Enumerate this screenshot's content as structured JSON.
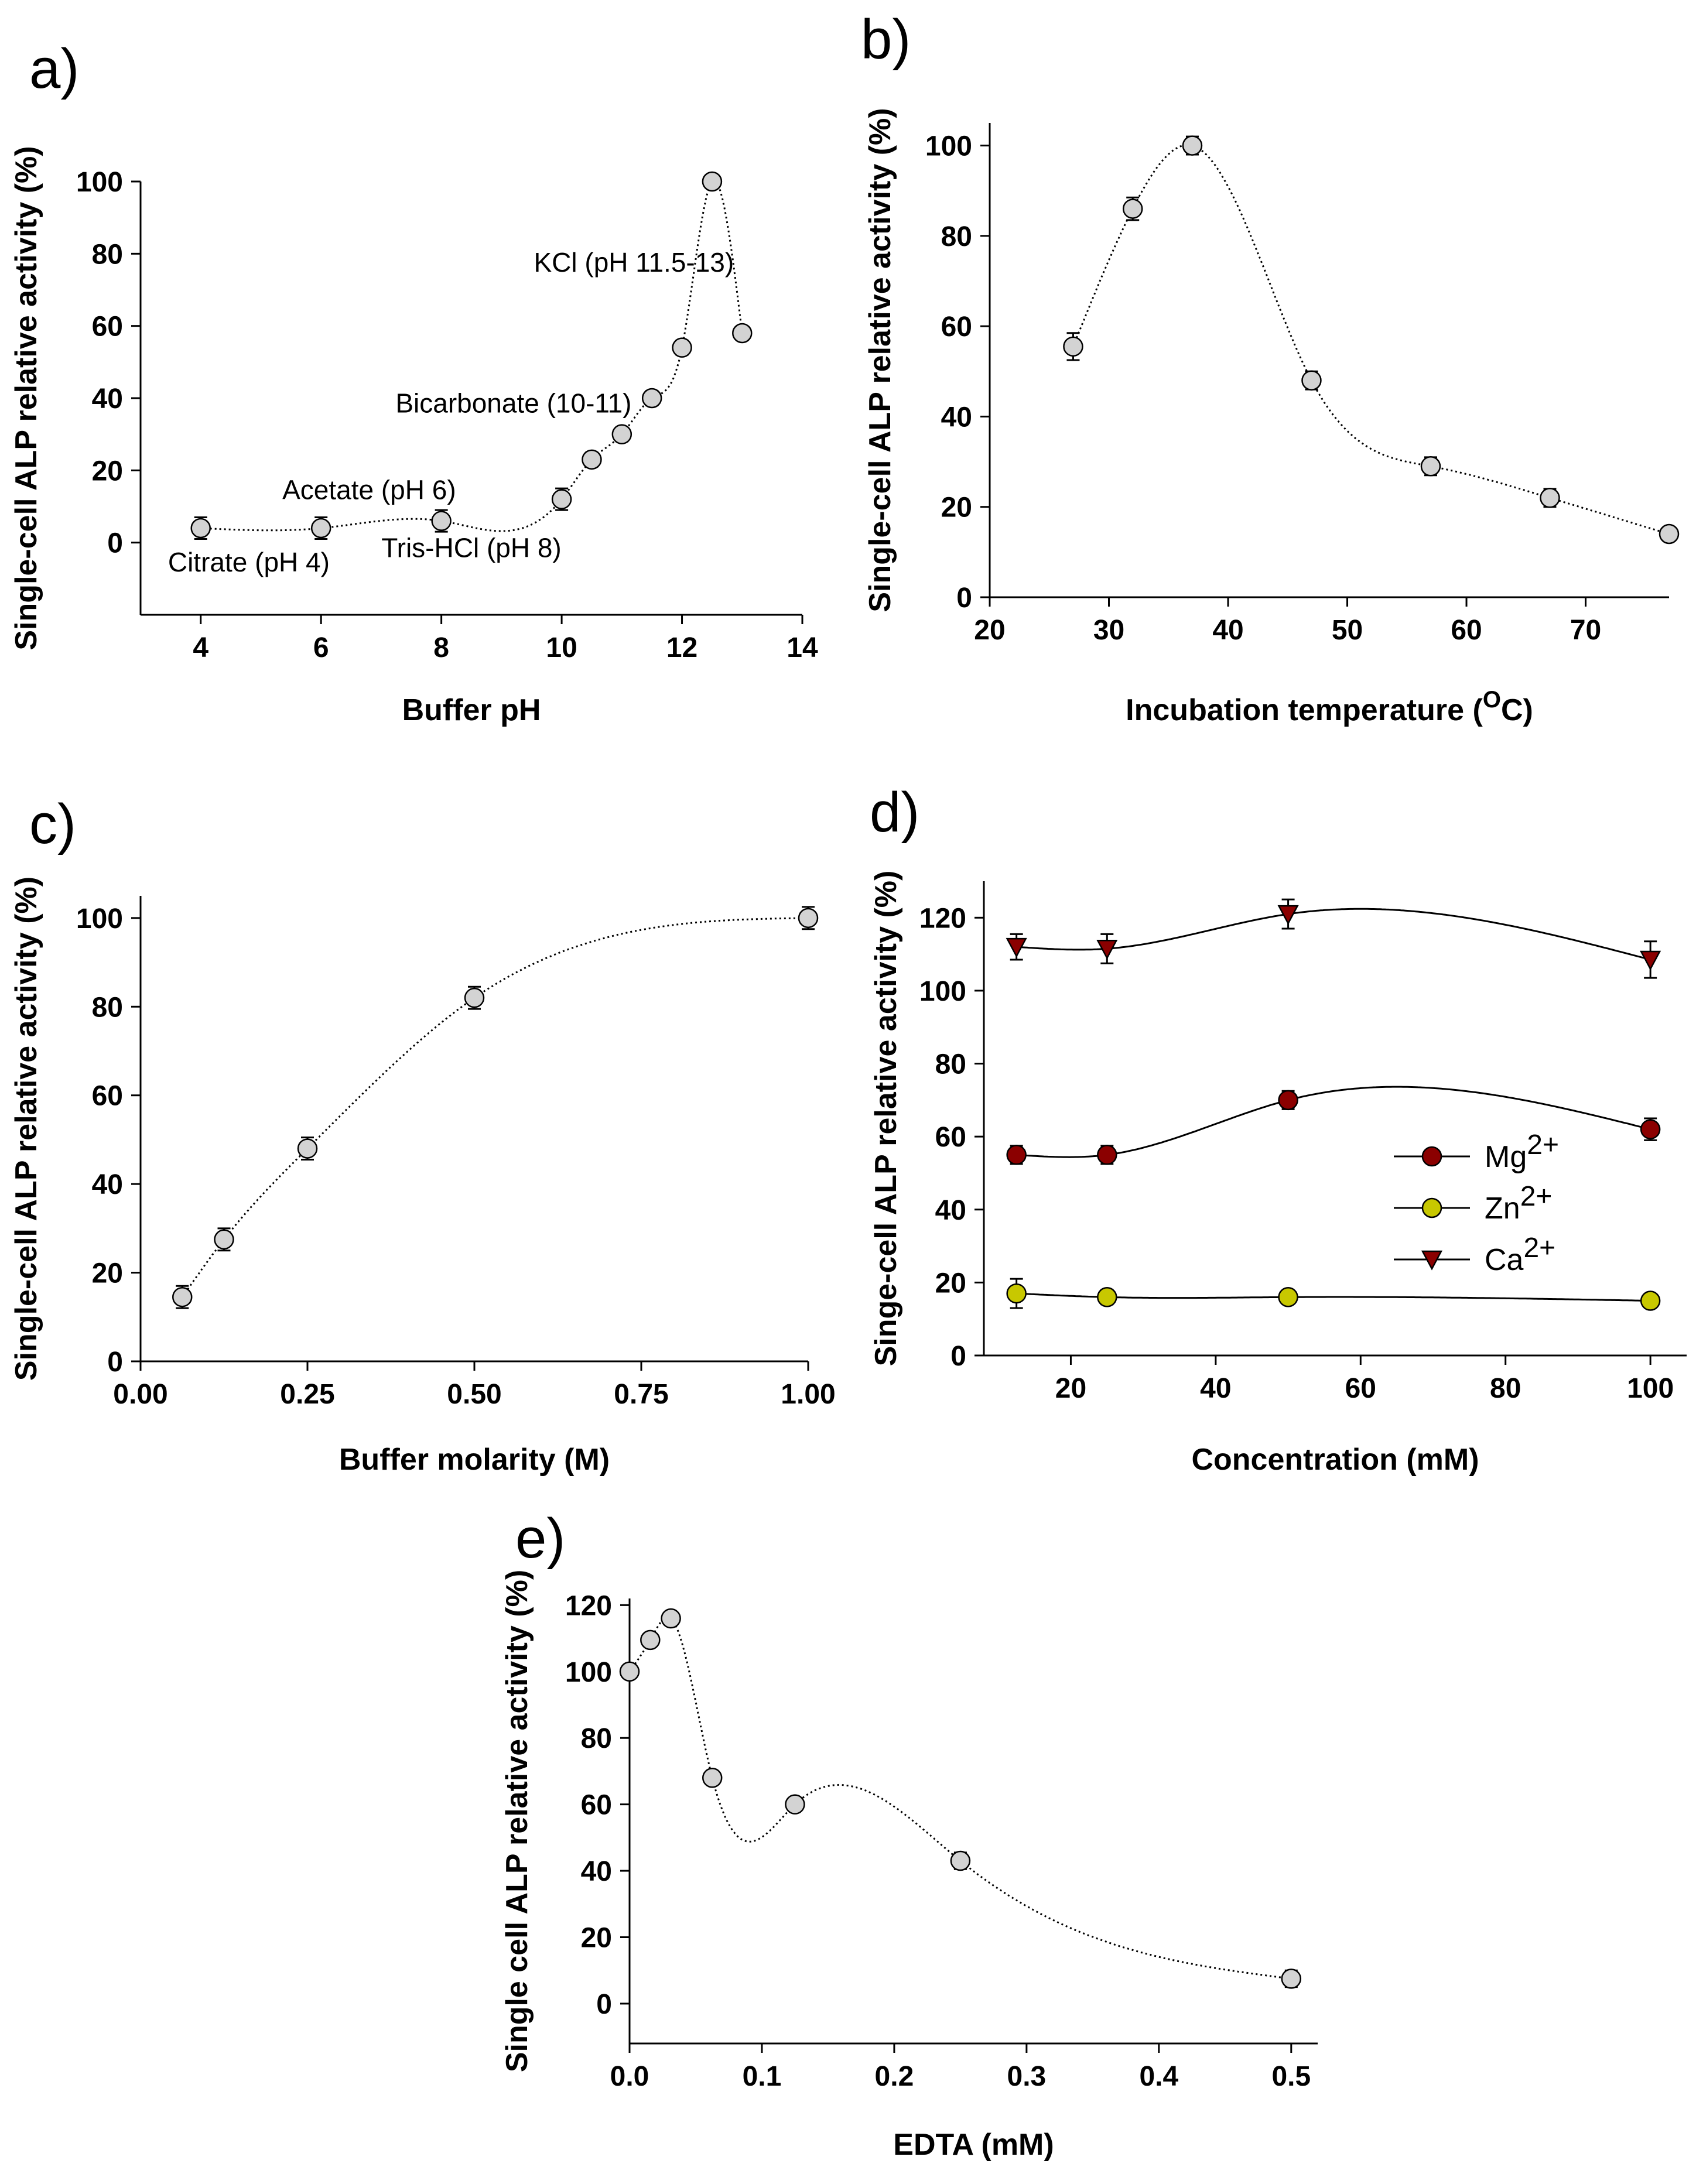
{
  "chart_data": [
    {
      "panel": "a)",
      "type": "scatter",
      "xlabel": "Buffer pH",
      "ylabel": "Single-cell ALP relative activity (%)",
      "xlim": [
        3,
        14
      ],
      "ylim": [
        -20,
        100
      ],
      "xticks": [
        4,
        6,
        8,
        10,
        12,
        14
      ],
      "yticks": [
        0,
        20,
        40,
        60,
        80,
        100
      ],
      "fit_line": "dotted",
      "series": [
        {
          "x": [
            4,
            6,
            8,
            10,
            10.5,
            11,
            11.5,
            12,
            12.5,
            13
          ],
          "y": [
            4,
            4,
            6,
            12,
            23,
            30,
            40,
            54,
            100,
            58
          ],
          "err": [
            3,
            3,
            3,
            3,
            2,
            2,
            2,
            2,
            1,
            1
          ]
        }
      ],
      "annotations": [
        {
          "text": "KCl (pH 11.5-13)",
          "x": 11.2,
          "y": 75
        },
        {
          "text": "Bicarbonate (10-11)",
          "x": 9.2,
          "y": 36
        },
        {
          "text": "Acetate (pH 6)",
          "x": 6.8,
          "y": 12
        },
        {
          "text": "Citrate (pH 4)",
          "x": 4.8,
          "y": -8
        },
        {
          "text": "Tris-HCl (pH 8)",
          "x": 8.5,
          "y": -4
        }
      ]
    },
    {
      "panel": "b)",
      "type": "scatter",
      "xlabel": "Incubation temperature (",
      "xlabel_sup": "O",
      "xlabel_end": "C)",
      "ylabel": "Single-cell ALP relative activity (%)",
      "xlim": [
        20,
        77
      ],
      "ylim": [
        0,
        105
      ],
      "xticks": [
        20,
        30,
        40,
        50,
        60,
        70
      ],
      "yticks": [
        0,
        20,
        40,
        60,
        80,
        100
      ],
      "fit_line": "dotted",
      "series": [
        {
          "x": [
            27,
            32,
            37,
            47,
            57,
            67,
            77
          ],
          "y": [
            55.5,
            86,
            100,
            48,
            29,
            22,
            14
          ],
          "err": [
            3,
            2.5,
            2,
            2,
            2,
            2,
            1.5
          ]
        }
      ]
    },
    {
      "panel": "c)",
      "type": "scatter",
      "xlabel": "Buffer molarity (M)",
      "ylabel": "Single-cell ALP relative activity (%)",
      "xlim": [
        0,
        1
      ],
      "ylim": [
        0,
        105
      ],
      "xticks": [
        "0.00",
        "0.25",
        "0.50",
        "0.75",
        "1.00"
      ],
      "yticks": [
        0,
        20,
        40,
        60,
        80,
        100
      ],
      "fit_line": "dotted",
      "series": [
        {
          "x": [
            0.0625,
            0.125,
            0.25,
            0.5,
            1.0
          ],
          "y": [
            14.5,
            27.5,
            48,
            82,
            100
          ],
          "err": [
            2.5,
            2.5,
            2.5,
            2.5,
            2.5
          ]
        }
      ]
    },
    {
      "panel": "d)",
      "type": "line",
      "xlabel": "Concentration (mM)",
      "ylabel": "Singe-cell ALP relative activity (%)",
      "xlim": [
        8,
        105
      ],
      "ylim": [
        0,
        130
      ],
      "xticks": [
        20,
        40,
        60,
        80,
        100
      ],
      "yticks": [
        0,
        20,
        40,
        60,
        80,
        100,
        120
      ],
      "legend_position": "center-right",
      "series": [
        {
          "name": "Mg",
          "sup": "2+",
          "marker": "circle",
          "color": "#8b0000",
          "x": [
            12.5,
            25,
            50,
            100
          ],
          "y": [
            55,
            55,
            70,
            62
          ],
          "err": [
            2.5,
            2.5,
            2.5,
            3
          ]
        },
        {
          "name": "Zn",
          "sup": "2+",
          "marker": "circle",
          "color": "#c8c800",
          "x": [
            12.5,
            25,
            50,
            100
          ],
          "y": [
            17,
            16,
            16,
            15
          ],
          "err": [
            4,
            2,
            1,
            1
          ]
        },
        {
          "name": "Ca",
          "sup": "2+",
          "marker": "triangle-down",
          "color": "#8b0000",
          "x": [
            12.5,
            25,
            50,
            100
          ],
          "y": [
            112,
            111.5,
            121,
            108.5
          ],
          "err": [
            3.5,
            4,
            4,
            5
          ]
        }
      ]
    },
    {
      "panel": "e)",
      "type": "scatter",
      "xlabel": "EDTA (mM)",
      "ylabel": "Single cell ALP relative activity (%)",
      "xlim": [
        0,
        0.52
      ],
      "ylim": [
        -12,
        122
      ],
      "xticks": [
        "0.0",
        "0.1",
        "0.2",
        "0.3",
        "0.4",
        "0.5"
      ],
      "yticks": [
        0,
        20,
        40,
        60,
        80,
        100,
        120
      ],
      "fit_line": "dotted",
      "series": [
        {
          "x": [
            0,
            0.015625,
            0.03125,
            0.0625,
            0.125,
            0.25,
            0.5
          ],
          "y": [
            100,
            109.5,
            116,
            68,
            60,
            43,
            7.5
          ],
          "err": [
            1,
            1.5,
            1.5,
            2,
            2,
            2.5,
            2.5
          ]
        }
      ]
    }
  ]
}
